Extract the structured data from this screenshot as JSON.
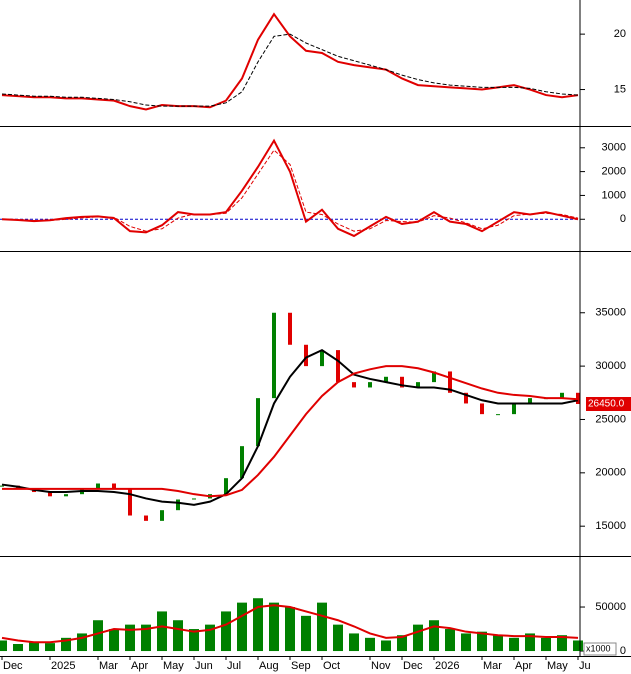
{
  "chart_data": [
    {
      "type": "line",
      "ylim": [
        11.8,
        22.9
      ],
      "yticks": [
        15,
        20
      ],
      "series": [
        {
          "color": "#e00000",
          "width": 2,
          "values": [
            14.5,
            14.4,
            14.3,
            14.3,
            14.2,
            14.2,
            14.1,
            14.0,
            13.5,
            13.2,
            13.6,
            13.5,
            13.5,
            13.4,
            14,
            16,
            19.5,
            21.8,
            19.8,
            18.5,
            18.3,
            17.5,
            17.2,
            17,
            16.8,
            16,
            15.4,
            15.3,
            15.2,
            15.1,
            15,
            15.2,
            15.4,
            15.0,
            14.5,
            14.3,
            14.5
          ]
        },
        {
          "color": "#000000",
          "width": 1,
          "dash": true,
          "values": [
            14.6,
            14.5,
            14.4,
            14.4,
            14.3,
            14.3,
            14.2,
            14.1,
            13.9,
            13.6,
            13.5,
            13.5,
            13.5,
            13.5,
            13.8,
            14.8,
            17.5,
            19.8,
            20.0,
            19.2,
            18.6,
            18.0,
            17.6,
            17.2,
            16.8,
            16.3,
            15.9,
            15.6,
            15.4,
            15.3,
            15.2,
            15.2,
            15.2,
            15.1,
            14.8,
            14.6,
            14.5
          ]
        }
      ]
    },
    {
      "type": "line",
      "ylim": [
        -1290,
        3830
      ],
      "yticks": [
        3000,
        2000,
        1000,
        0
      ],
      "hline": {
        "value": 0,
        "color": "#0000cc"
      },
      "series": [
        {
          "color": "#e00000",
          "width": 2,
          "values": [
            0,
            -30,
            -80,
            -40,
            50,
            100,
            120,
            50,
            -500,
            -550,
            -250,
            300,
            200,
            200,
            300,
            1200,
            2200,
            3300,
            2000,
            -100,
            400,
            -400,
            -700,
            -300,
            100,
            -200,
            -100,
            300,
            -100,
            -200,
            -500,
            -100,
            300,
            200,
            300,
            150,
            0
          ]
        },
        {
          "color": "#e00000",
          "width": 1,
          "dash": true,
          "values": [
            0,
            -10,
            -50,
            -50,
            0,
            60,
            100,
            80,
            -300,
            -500,
            -400,
            50,
            220,
            200,
            250,
            900,
            1900,
            2900,
            2300,
            300,
            200,
            -200,
            -500,
            -400,
            -50,
            -100,
            -120,
            150,
            50,
            -150,
            -400,
            -250,
            150,
            220,
            250,
            200,
            50
          ]
        }
      ]
    },
    {
      "type": "line",
      "ylim": [
        12300,
        40600
      ],
      "yticks": [
        15000,
        20000,
        25000,
        30000,
        35000
      ],
      "last_label": "26450.0",
      "series": [
        {
          "style": "updown",
          "up_color": "#008000",
          "down_color": "#e00000",
          "values": [
            18800,
            18500,
            18200,
            17800,
            18000,
            18500,
            19000,
            18500,
            16000,
            15500,
            16500,
            17500,
            17600,
            18000,
            19500,
            22500,
            27000,
            35000,
            32000,
            30000,
            31500,
            28500,
            28000,
            28500,
            29000,
            28000,
            28500,
            29500,
            27500,
            26500,
            25500,
            25500,
            26500,
            27000,
            27000,
            27500,
            26450
          ]
        },
        {
          "color": "#000000",
          "width": 2,
          "values": [
            18900,
            18700,
            18400,
            18200,
            18200,
            18300,
            18300,
            18200,
            18000,
            17600,
            17300,
            17200,
            17000,
            17300,
            18000,
            19500,
            22500,
            26500,
            29000,
            30800,
            31500,
            30500,
            29200,
            28800,
            28500,
            28200,
            28000,
            28000,
            27800,
            27300,
            26800,
            26500,
            26500,
            26500,
            26500,
            26500,
            26800
          ]
        },
        {
          "color": "#e00000",
          "width": 2,
          "values": [
            18500,
            18500,
            18500,
            18500,
            18500,
            18500,
            18500,
            18500,
            18500,
            18500,
            18500,
            18300,
            18000,
            17800,
            17900,
            18400,
            19800,
            21500,
            23500,
            25500,
            27200,
            28500,
            29300,
            29700,
            30000,
            30000,
            29800,
            29400,
            28900,
            28400,
            27900,
            27500,
            27300,
            27200,
            27000,
            27000,
            26900
          ]
        }
      ]
    },
    {
      "type": "bar",
      "ylim": [
        -4500,
        105700
      ],
      "yticks": [
        0,
        50000
      ],
      "unit_label": "x1000",
      "categories": [
        "Dec",
        null,
        null,
        "2025",
        null,
        null,
        "Mar",
        null,
        "Apr",
        null,
        "May",
        null,
        "Jun",
        null,
        "Jul",
        null,
        "Aug",
        null,
        "Sep",
        null,
        "Oct",
        null,
        null,
        "Nov",
        null,
        "Dec",
        null,
        "2026",
        null,
        null,
        "Mar",
        null,
        "Apr",
        null,
        "May",
        null,
        "Ju"
      ],
      "series": [
        {
          "color": "#008000",
          "values": [
            12000,
            8000,
            10000,
            9000,
            15000,
            20000,
            35000,
            25000,
            30000,
            30000,
            45000,
            35000,
            25000,
            30000,
            45000,
            55000,
            60000,
            55000,
            50000,
            40000,
            55000,
            30000,
            20000,
            15000,
            12000,
            18000,
            30000,
            35000,
            25000,
            20000,
            22000,
            18000,
            15000,
            20000,
            15000,
            18000,
            12000
          ]
        },
        {
          "color": "#e00000",
          "width": 2,
          "values": [
            15000,
            12000,
            10000,
            10000,
            12000,
            15000,
            20000,
            25000,
            24000,
            25000,
            28000,
            25000,
            22000,
            24000,
            30000,
            40000,
            50000,
            52000,
            50000,
            45000,
            40000,
            35000,
            28000,
            20000,
            15000,
            16000,
            22000,
            28000,
            26000,
            22000,
            20000,
            18000,
            17000,
            17000,
            16000,
            16000,
            15000
          ]
        }
      ]
    }
  ]
}
